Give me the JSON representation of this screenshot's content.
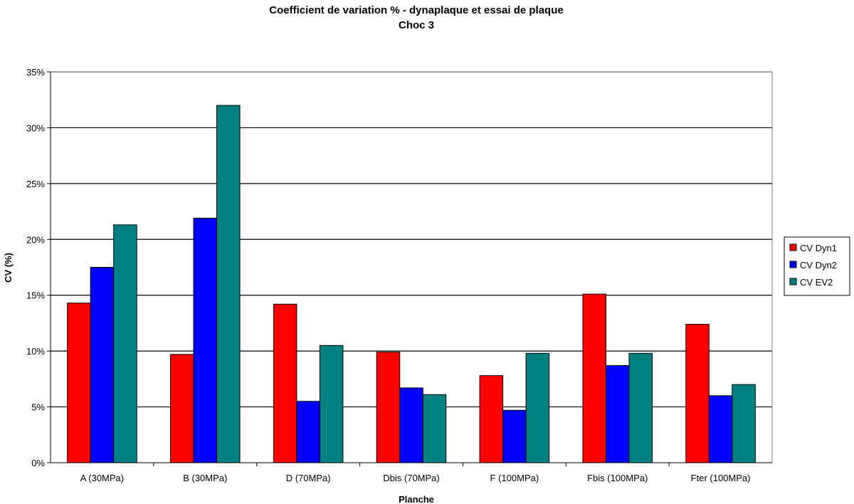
{
  "chart_data": {
    "type": "bar",
    "title": "Coefficient de variation % - dynaplaque et essai de plaque",
    "subtitle": "Choc 3",
    "xlabel": "Planche",
    "ylabel": "CV (%)",
    "ylim": [
      0,
      35
    ],
    "y_ticks": [
      0,
      5,
      10,
      15,
      20,
      25,
      30,
      35
    ],
    "y_tick_labels": [
      "0%",
      "5%",
      "10%",
      "15%",
      "20%",
      "25%",
      "30%",
      "35%"
    ],
    "grid": "horizontal",
    "legend_position": "right",
    "categories": [
      "A (30MPa)",
      "B (30MPa)",
      "D (70MPa)",
      "Dbis (70MPa)",
      "F (100MPa)",
      "Fbis (100MPa)",
      "Fter (100MPa)"
    ],
    "series": [
      {
        "name": "CV Dyn1",
        "color": "#ff0000",
        "values": [
          14.3,
          9.7,
          14.2,
          9.9,
          7.8,
          15.1,
          12.4
        ]
      },
      {
        "name": "CV Dyn2",
        "color": "#0000ff",
        "values": [
          17.5,
          21.9,
          5.5,
          6.7,
          4.7,
          8.7,
          6.0
        ]
      },
      {
        "name": "CV EV2",
        "color": "#008080",
        "values": [
          21.3,
          32.0,
          10.5,
          6.1,
          9.8,
          9.8,
          7.0
        ]
      }
    ]
  }
}
